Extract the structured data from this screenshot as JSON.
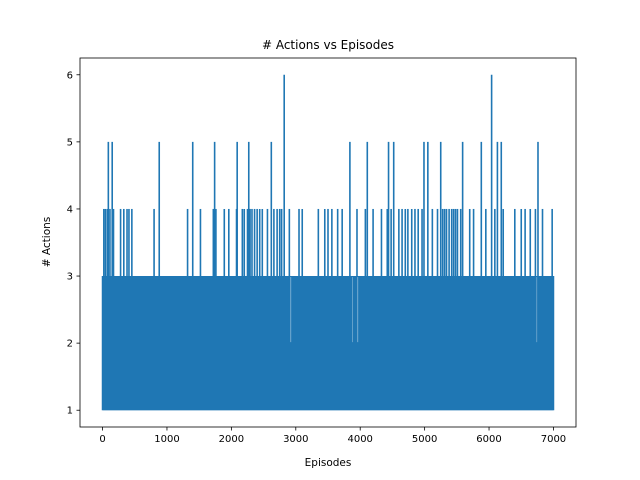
{
  "chart_data": {
    "type": "line",
    "title": "# Actions vs Episodes",
    "xlabel": "Episodes",
    "ylabel": "# Actions",
    "xlim": [
      -350,
      7350
    ],
    "ylim": [
      0.75,
      6.25
    ],
    "x_ticks": [
      0,
      1000,
      2000,
      3000,
      4000,
      5000,
      6000,
      7000
    ],
    "y_ticks": [
      1,
      2,
      3,
      4,
      5,
      6
    ],
    "grid": false,
    "legend": "none",
    "series": [
      {
        "color": "#1f77b4",
        "x_range": [
          0,
          7000
        ],
        "typical_range": [
          1,
          3
        ],
        "gaps_at_3": [
          [
            2920,
            2940
          ],
          [
            3880,
            3890
          ],
          [
            3960,
            3980
          ],
          [
            6740,
            6750
          ]
        ],
        "peaks": [
          {
            "x": 20,
            "y": 4
          },
          {
            "x": 45,
            "y": 4
          },
          {
            "x": 75,
            "y": 4
          },
          {
            "x": 90,
            "y": 5
          },
          {
            "x": 115,
            "y": 4
          },
          {
            "x": 150,
            "y": 5
          },
          {
            "x": 170,
            "y": 4
          },
          {
            "x": 280,
            "y": 4
          },
          {
            "x": 330,
            "y": 4
          },
          {
            "x": 380,
            "y": 4
          },
          {
            "x": 410,
            "y": 4
          },
          {
            "x": 455,
            "y": 4
          },
          {
            "x": 800,
            "y": 4
          },
          {
            "x": 880,
            "y": 5
          },
          {
            "x": 1320,
            "y": 4
          },
          {
            "x": 1400,
            "y": 5
          },
          {
            "x": 1520,
            "y": 4
          },
          {
            "x": 1720,
            "y": 4
          },
          {
            "x": 1740,
            "y": 5
          },
          {
            "x": 1760,
            "y": 4
          },
          {
            "x": 1890,
            "y": 4
          },
          {
            "x": 1960,
            "y": 4
          },
          {
            "x": 2080,
            "y": 4
          },
          {
            "x": 2090,
            "y": 5
          },
          {
            "x": 2170,
            "y": 4
          },
          {
            "x": 2200,
            "y": 4
          },
          {
            "x": 2250,
            "y": 4
          },
          {
            "x": 2270,
            "y": 5
          },
          {
            "x": 2290,
            "y": 4
          },
          {
            "x": 2320,
            "y": 4
          },
          {
            "x": 2360,
            "y": 4
          },
          {
            "x": 2400,
            "y": 4
          },
          {
            "x": 2440,
            "y": 4
          },
          {
            "x": 2480,
            "y": 4
          },
          {
            "x": 2560,
            "y": 4
          },
          {
            "x": 2620,
            "y": 5
          },
          {
            "x": 2660,
            "y": 4
          },
          {
            "x": 2710,
            "y": 4
          },
          {
            "x": 2750,
            "y": 4
          },
          {
            "x": 2780,
            "y": 4
          },
          {
            "x": 2820,
            "y": 6
          },
          {
            "x": 2900,
            "y": 4
          },
          {
            "x": 3050,
            "y": 4
          },
          {
            "x": 3100,
            "y": 4
          },
          {
            "x": 3350,
            "y": 4
          },
          {
            "x": 3450,
            "y": 4
          },
          {
            "x": 3500,
            "y": 4
          },
          {
            "x": 3560,
            "y": 4
          },
          {
            "x": 3650,
            "y": 4
          },
          {
            "x": 3720,
            "y": 4
          },
          {
            "x": 3840,
            "y": 5
          },
          {
            "x": 3950,
            "y": 4
          },
          {
            "x": 4080,
            "y": 4
          },
          {
            "x": 4110,
            "y": 5
          },
          {
            "x": 4200,
            "y": 4
          },
          {
            "x": 4330,
            "y": 4
          },
          {
            "x": 4420,
            "y": 4
          },
          {
            "x": 4440,
            "y": 5
          },
          {
            "x": 4480,
            "y": 4
          },
          {
            "x": 4520,
            "y": 5
          },
          {
            "x": 4600,
            "y": 4
          },
          {
            "x": 4650,
            "y": 4
          },
          {
            "x": 4700,
            "y": 4
          },
          {
            "x": 4740,
            "y": 4
          },
          {
            "x": 4800,
            "y": 4
          },
          {
            "x": 4850,
            "y": 4
          },
          {
            "x": 4900,
            "y": 4
          },
          {
            "x": 4960,
            "y": 4
          },
          {
            "x": 4990,
            "y": 5
          },
          {
            "x": 5050,
            "y": 5
          },
          {
            "x": 5120,
            "y": 4
          },
          {
            "x": 5200,
            "y": 4
          },
          {
            "x": 5250,
            "y": 5
          },
          {
            "x": 5280,
            "y": 4
          },
          {
            "x": 5310,
            "y": 4
          },
          {
            "x": 5340,
            "y": 4
          },
          {
            "x": 5380,
            "y": 4
          },
          {
            "x": 5420,
            "y": 4
          },
          {
            "x": 5450,
            "y": 4
          },
          {
            "x": 5480,
            "y": 4
          },
          {
            "x": 5510,
            "y": 4
          },
          {
            "x": 5560,
            "y": 4
          },
          {
            "x": 5590,
            "y": 5
          },
          {
            "x": 5700,
            "y": 4
          },
          {
            "x": 5760,
            "y": 4
          },
          {
            "x": 5880,
            "y": 5
          },
          {
            "x": 5950,
            "y": 4
          },
          {
            "x": 6040,
            "y": 6
          },
          {
            "x": 6090,
            "y": 4
          },
          {
            "x": 6130,
            "y": 5
          },
          {
            "x": 6190,
            "y": 5
          },
          {
            "x": 6220,
            "y": 4
          },
          {
            "x": 6400,
            "y": 4
          },
          {
            "x": 6500,
            "y": 4
          },
          {
            "x": 6560,
            "y": 4
          },
          {
            "x": 6640,
            "y": 4
          },
          {
            "x": 6720,
            "y": 4
          },
          {
            "x": 6760,
            "y": 5
          },
          {
            "x": 6830,
            "y": 4
          },
          {
            "x": 6980,
            "y": 4
          }
        ]
      }
    ]
  }
}
